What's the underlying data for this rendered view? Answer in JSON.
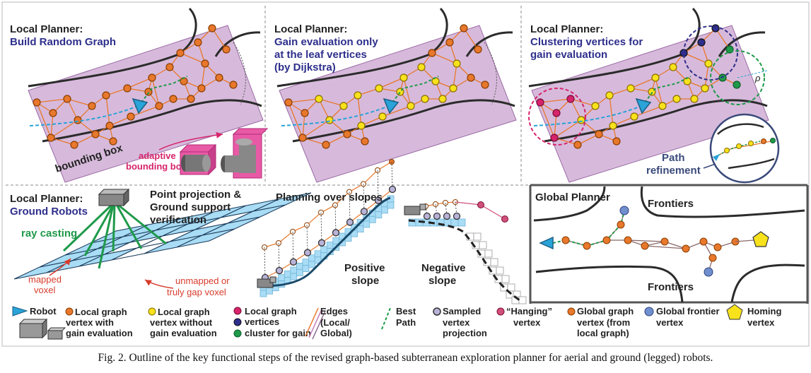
{
  "panels": {
    "p1": {
      "title1": "Local Planner:",
      "title2": "Build Random Graph",
      "bbox_label": "bounding box",
      "adaptive1": "adaptive",
      "adaptive2": "bounding box"
    },
    "p2": {
      "title1": "Local Planner:",
      "title2": "Gain evaluation only",
      "title3": "at the leaf vertices",
      "title4": "(by Dijkstra)"
    },
    "p3": {
      "title1": "Local Planner:",
      "title2": "Clustering vertices for",
      "title3": "gain evaluation",
      "rho": "ρ",
      "refine1": "Path",
      "refine2": "refinement"
    },
    "p4": {
      "title1": "Local Planner:",
      "title2": "Ground Robots",
      "proj1": "Point projection &",
      "proj2": "Ground support",
      "proj3": "verification",
      "ray": "ray casting",
      "mapped1": "mapped",
      "mapped2": "voxel",
      "unmapped1": "unmapped or",
      "unmapped2": "truly gap voxel"
    },
    "p5": {
      "title": "Planning over slopes",
      "pos1": "Positive",
      "pos2": "slope",
      "neg1": "Negative",
      "neg2": "slope"
    },
    "p6": {
      "title": "Global Planner",
      "frontiers_top": "Frontiers",
      "frontiers_bottom": "Frontiers"
    }
  },
  "legend": {
    "robot": "Robot",
    "lg_gain1": "Local graph",
    "lg_gain2": "vertex with",
    "lg_gain3": "gain evaluation",
    "lg_nogain1": "Local graph",
    "lg_nogain2": "vertex without",
    "lg_nogain3": "gain evaluation",
    "cluster1": "Local graph",
    "cluster2": "vertices",
    "cluster3": "cluster for gain",
    "edges1": "Edges",
    "edges2": "(Local/",
    "edges3": "Global)",
    "best1": "Best",
    "best2": "Path",
    "sampled1": "Sampled",
    "sampled2": "vertex",
    "sampled3": "projection",
    "hanging1": "“Hanging”",
    "hanging2": "vertex",
    "global1": "Global graph",
    "global2": "vertex (from",
    "global3": "local graph)",
    "frontier1": "Global frontier",
    "frontier2": "vertex",
    "homing1": "Homing",
    "homing2": "vertex"
  },
  "caption": "Fig. 2.   Outline of the key functional steps of the revised graph-based subterranean exploration planner for aerial and ground (legged) robots.",
  "colors": {
    "title_blue": "#2e2f8c",
    "vertex_orange": "#e8782c",
    "vertex_yellow": "#f7e21c",
    "cluster_pink": "#d6246b",
    "cluster_navy": "#2e2f8c",
    "cluster_green": "#1f9a4a",
    "edge_orange": "#e8782c",
    "best_path_green": "#1f9a4a",
    "robot_blue": "#29a3d8",
    "bbox_fill": "#c9a3cf",
    "voxel_blue": "#a9dcf5",
    "frontier_vertex": "#6f8fcf",
    "homing_yellow": "#f7e21c",
    "hanging_pink": "#d0507a",
    "sampled_lilac": "#b9b3d8",
    "magenta_label": "#d6246b",
    "ray_green": "#1f9a4a",
    "mapped_red": "#d73c2c"
  },
  "icons": [
    "robot-triangle-icon",
    "aerial-robot-icon",
    "ground-robot-icon",
    "homing-pentagon-icon"
  ]
}
